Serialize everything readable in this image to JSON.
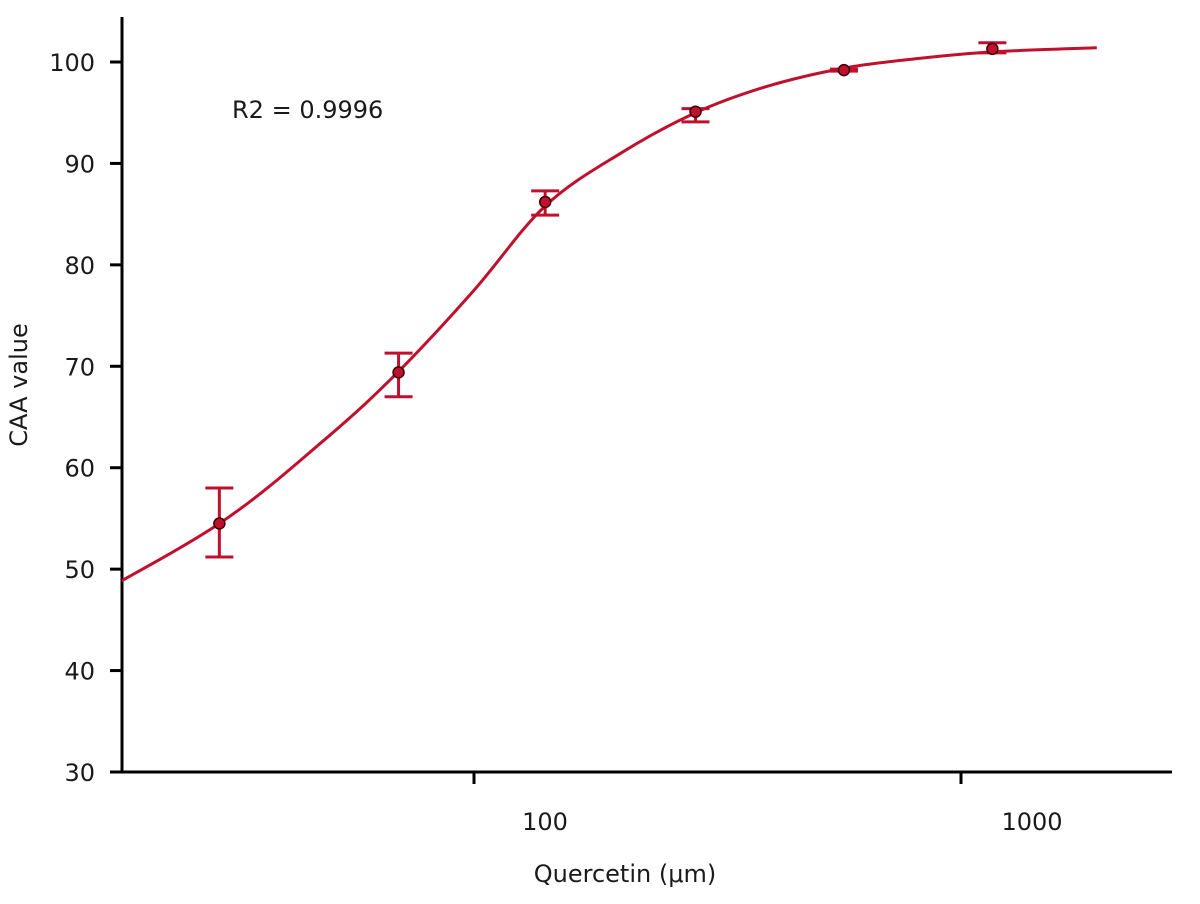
{
  "chart_data": {
    "type": "scatter",
    "title": "",
    "xlabel": "Quercetin (μm)",
    "ylabel": "CAA value",
    "annotation": "R2 = 0.9996",
    "x_scale": "log",
    "x_ticks": [
      {
        "value": 100,
        "label": "100"
      },
      {
        "value": 1000,
        "label": "1000"
      }
    ],
    "y_ticks": [
      30,
      40,
      50,
      60,
      70,
      80,
      90,
      100
    ],
    "ylim": [
      30,
      104.5
    ],
    "grid": false,
    "legend": "none",
    "colors": {
      "series": "#c0102e",
      "axis": "#000000",
      "point_fill": "#c0102e",
      "point_edge": "#3a0008"
    },
    "points": [
      {
        "x": 30,
        "y": 54.5,
        "err_low": 51.2,
        "err_high": 58.0
      },
      {
        "x": 70,
        "y": 69.4,
        "err_low": 67.0,
        "err_high": 71.3
      },
      {
        "x": 140,
        "y": 86.2,
        "err_low": 84.9,
        "err_high": 87.3
      },
      {
        "x": 285,
        "y": 95.1,
        "err_low": 94.1,
        "err_high": 95.4
      },
      {
        "x": 575,
        "y": 99.2,
        "err_low": 99.1,
        "err_high": 99.3
      },
      {
        "x": 1160,
        "y": 101.3,
        "err_low": 100.9,
        "err_high": 101.9
      }
    ],
    "fit_curve": {
      "type": "sigmoid",
      "x": [
        15,
        30,
        50,
        70,
        100,
        140,
        200,
        285,
        400,
        575,
        800,
        1160,
        1900
      ],
      "y": [
        46.2,
        54.5,
        63.0,
        69.5,
        77.5,
        85.8,
        91.0,
        95.0,
        97.6,
        99.4,
        100.3,
        101.0,
        101.4
      ]
    }
  }
}
